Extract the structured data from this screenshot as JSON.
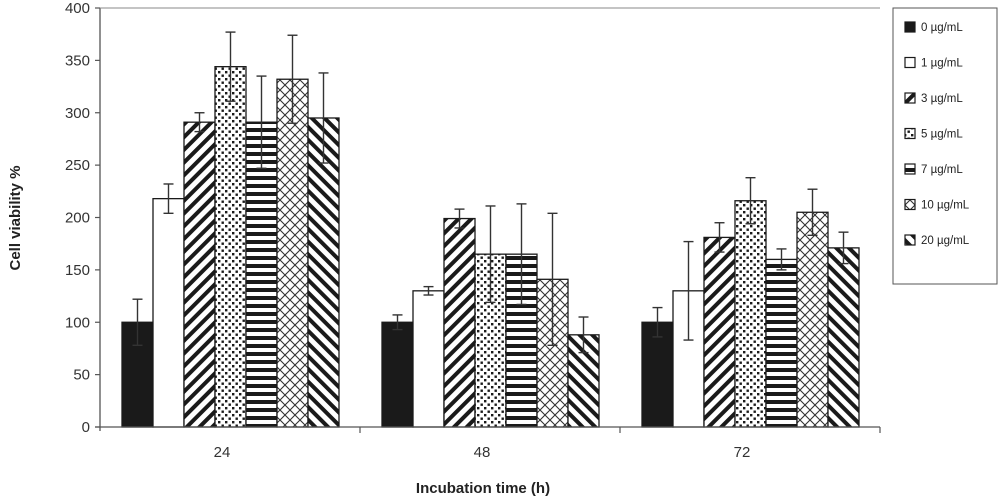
{
  "chart_data": {
    "type": "bar",
    "title": "",
    "xlabel": "Incubation time (h)",
    "ylabel": "Cell viability %",
    "ylim": [
      0,
      400
    ],
    "yticks": [
      0,
      50,
      100,
      150,
      200,
      250,
      300,
      350,
      400
    ],
    "grid": false,
    "legend_position": "right",
    "categories": [
      "24",
      "48",
      "72"
    ],
    "series": [
      {
        "name": "0 µg/mL",
        "pattern": "solid-black",
        "values": [
          100,
          100,
          100
        ],
        "errors": [
          22,
          7,
          14
        ]
      },
      {
        "name": "1 µg/mL",
        "pattern": "white",
        "values": [
          218,
          130,
          130
        ],
        "errors": [
          14,
          4,
          47
        ]
      },
      {
        "name": "3 µg/mL",
        "pattern": "diagonal-down",
        "values": [
          291,
          199,
          181
        ],
        "errors": [
          9,
          9,
          14
        ]
      },
      {
        "name": "5 µg/mL",
        "pattern": "dots",
        "values": [
          344,
          165,
          216
        ],
        "errors": [
          33,
          46,
          22
        ]
      },
      {
        "name": "7 µg/mL",
        "pattern": "horizontal-lines",
        "values": [
          291,
          165,
          160
        ],
        "errors": [
          44,
          48,
          10
        ]
      },
      {
        "name": "10 µg/mL",
        "pattern": "crosshatch",
        "values": [
          332,
          141,
          205
        ],
        "errors": [
          42,
          63,
          22
        ]
      },
      {
        "name": "20 µg/mL",
        "pattern": "diagonal-up",
        "values": [
          295,
          88,
          171
        ],
        "errors": [
          43,
          17,
          15
        ]
      }
    ]
  },
  "colors": {
    "bar_stroke": "#1a1a1a",
    "solid_fill": "#1a1a1a",
    "axis": "#555555",
    "background": "#ffffff"
  }
}
